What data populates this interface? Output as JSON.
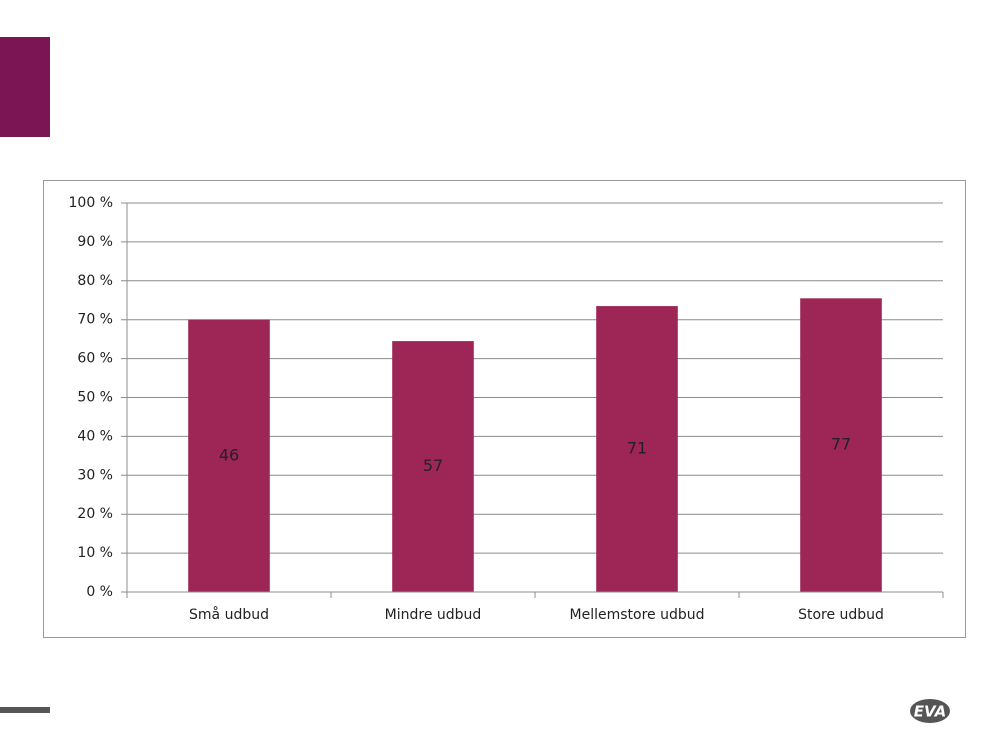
{
  "logo": "EVA",
  "chart_data": {
    "type": "bar",
    "categories": [
      "Små udbud",
      "Mindre udbud",
      "Mellemstore udbud",
      "Store udbud"
    ],
    "values": [
      70,
      64.5,
      73.5,
      75.5
    ],
    "counts": [
      46,
      57,
      71,
      77
    ],
    "color": "#9e2656",
    "ylim": [
      0,
      100
    ],
    "yticks": [
      {
        "value": 0,
        "label": "0 %"
      },
      {
        "value": 10,
        "label": "10 %"
      },
      {
        "value": 20,
        "label": "20 %"
      },
      {
        "value": 30,
        "label": "30 %"
      },
      {
        "value": 40,
        "label": "40 %"
      },
      {
        "value": 50,
        "label": "50 %"
      },
      {
        "value": 60,
        "label": "60 %"
      },
      {
        "value": 70,
        "label": "70 %"
      },
      {
        "value": 80,
        "label": "80 %"
      },
      {
        "value": 90,
        "label": "90 %"
      },
      {
        "value": 100,
        "label": "100 %"
      }
    ],
    "grid": true
  }
}
